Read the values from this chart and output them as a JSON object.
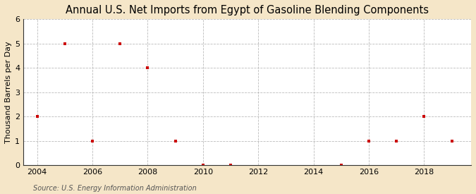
{
  "title": "Annual U.S. Net Imports from Egypt of Gasoline Blending Components",
  "ylabel": "Thousand Barrels per Day",
  "source": "Source: U.S. Energy Information Administration",
  "background_color": "#f5e6c8",
  "plot_bg_color": "#ffffff",
  "marker_color": "#cc0000",
  "grid_color": "#aaaaaa",
  "years": [
    2004,
    2005,
    2006,
    2007,
    2008,
    2009,
    2010,
    2011,
    2015,
    2016,
    2017,
    2018,
    2019
  ],
  "values": [
    2,
    5,
    1,
    5,
    4,
    1,
    0,
    0,
    0,
    1,
    1,
    2,
    1
  ],
  "xlim": [
    2003.5,
    2019.7
  ],
  "ylim": [
    0,
    6
  ],
  "yticks": [
    0,
    1,
    2,
    3,
    4,
    5,
    6
  ],
  "xticks": [
    2004,
    2006,
    2008,
    2010,
    2012,
    2014,
    2016,
    2018
  ],
  "title_fontsize": 10.5,
  "label_fontsize": 8,
  "tick_fontsize": 8,
  "source_fontsize": 7
}
